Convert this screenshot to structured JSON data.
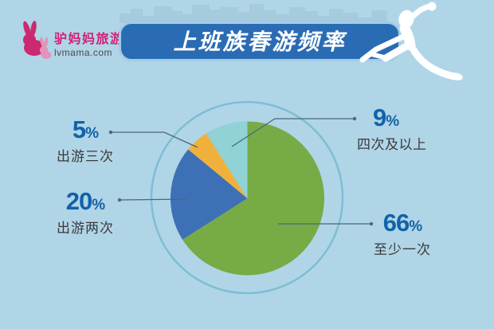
{
  "logo": {
    "brand_cn": "驴妈妈旅游",
    "brand_en": "lvmama.com",
    "brand_color": "#d21f74"
  },
  "banner": {
    "title": "上班族春游频率",
    "bg": "#2a6cb3",
    "border": "#a3cbe5"
  },
  "chart_data": {
    "type": "pie",
    "title": "上班族春游频率",
    "unit": "%",
    "direction": "clockwise",
    "start_angle_deg": 0,
    "legend_position": "callout-labels",
    "slices": [
      {
        "label": "至少一次",
        "value": 66,
        "color": "#77ab46"
      },
      {
        "label": "出游两次",
        "value": 20,
        "color": "#3e70b6"
      },
      {
        "label": "出游三次",
        "value": 5,
        "color": "#f0b13c"
      },
      {
        "label": "四次及以上",
        "value": 9,
        "color": "#90d2d5"
      }
    ]
  },
  "colors": {
    "background": "#b0d5e7",
    "skyline": "#a6cade",
    "ring": "#7fbdd4",
    "number_blue": "#1162a8",
    "label_text": "#3a3a3a",
    "callout_line": "#4a6878",
    "figure_white": "#ffffff"
  }
}
